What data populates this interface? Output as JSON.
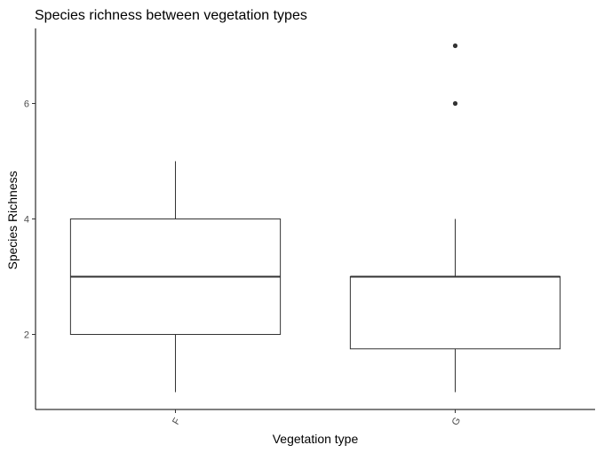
{
  "chart_data": {
    "type": "box",
    "title": "Species richness between vegetation types",
    "xlabel": "Vegetation type",
    "ylabel": "Species Richness",
    "ylim": [
      0.7,
      7.3
    ],
    "yticks": [
      2,
      4,
      6
    ],
    "grid": false,
    "categories": [
      "F",
      "G"
    ],
    "boxes": [
      {
        "category": "F",
        "whisker_low": 1,
        "q1": 2,
        "median": 3,
        "q3": 4,
        "whisker_high": 5,
        "outliers": []
      },
      {
        "category": "G",
        "whisker_low": 1,
        "q1": 1.75,
        "median": 3,
        "q3": 3,
        "whisker_high": 4,
        "outliers": [
          6,
          7
        ]
      }
    ],
    "colors": {
      "box_fill": "#ffffff",
      "box_line": "#333333",
      "axis": "#000000"
    }
  }
}
